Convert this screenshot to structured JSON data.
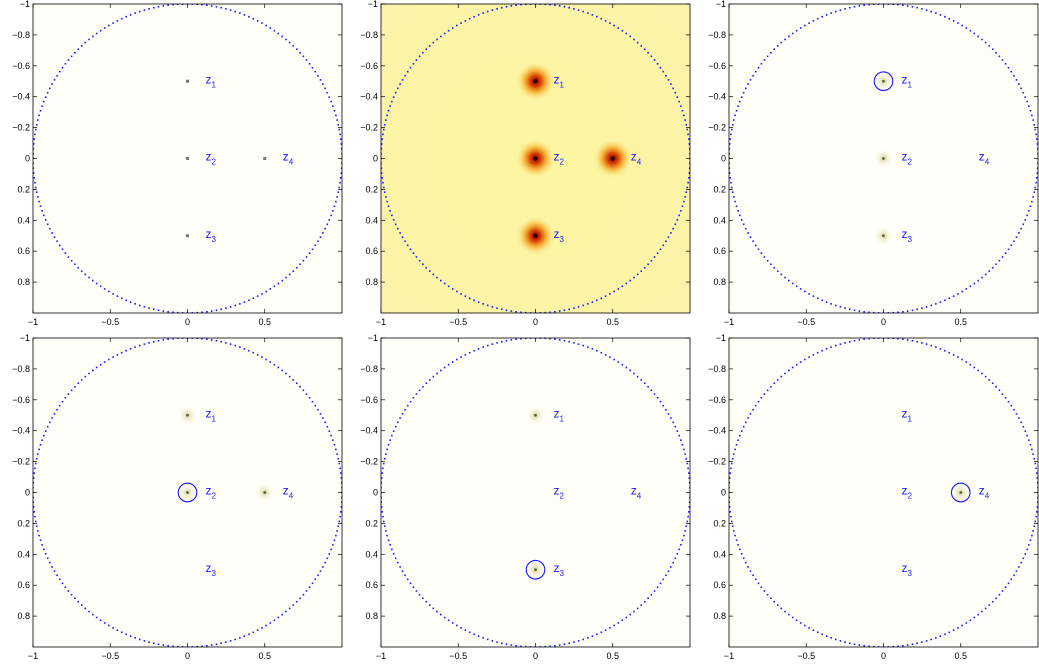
{
  "chart_data": [
    {
      "type": "scatter",
      "xlim": [
        -1,
        1
      ],
      "ylim": [
        -1,
        1
      ],
      "y_axis": "reversed",
      "xticks": [
        -1,
        -0.5,
        0,
        0.5
      ],
      "xtick_labels": [
        "−1",
        "−0.5",
        "0",
        "0.5"
      ],
      "yticks": [
        -1,
        -0.8,
        -0.6,
        -0.4,
        -0.2,
        0,
        0.2,
        0.4,
        0.6,
        0.8
      ],
      "ytick_labels": [
        "−1",
        "−0.8",
        "−0.6",
        "−0.4",
        "−0.2",
        "0",
        "0.2",
        "0.4",
        "0.6",
        "0.8"
      ],
      "grid": false,
      "background": "white",
      "unit_circle": true,
      "points": [
        {
          "label": "z",
          "sub": "1",
          "x": 0,
          "y": -0.5,
          "marker": "gray-dot"
        },
        {
          "label": "z",
          "sub": "2",
          "x": 0,
          "y": 0,
          "marker": "gray-dot"
        },
        {
          "label": "z",
          "sub": "3",
          "x": 0,
          "y": 0.5,
          "marker": "gray-dot"
        },
        {
          "label": "z",
          "sub": "4",
          "x": 0.5,
          "y": 0,
          "marker": "gray-dot"
        }
      ],
      "highlight": null
    },
    {
      "type": "heatmap",
      "xlim": [
        -1,
        1
      ],
      "ylim": [
        -1,
        1
      ],
      "y_axis": "reversed",
      "xticks": [
        -1,
        -0.5,
        0,
        0.5
      ],
      "xtick_labels": [
        "−1",
        "−0.5",
        "0",
        "0.5"
      ],
      "yticks": [
        -1,
        -0.8,
        -0.6,
        -0.4,
        -0.2,
        0,
        0.2,
        0.4,
        0.6,
        0.8
      ],
      "ytick_labels": [
        "−1",
        "−0.8",
        "−0.6",
        "−0.4",
        "−0.2",
        "0",
        "0.2",
        "0.4",
        "0.6",
        "0.8"
      ],
      "grid": false,
      "background": "yellow",
      "unit_circle": true,
      "points": [
        {
          "label": "z",
          "sub": "1",
          "x": 0,
          "y": -0.5,
          "marker": "hot-spot"
        },
        {
          "label": "z",
          "sub": "2",
          "x": 0,
          "y": 0,
          "marker": "hot-spot"
        },
        {
          "label": "z",
          "sub": "3",
          "x": 0,
          "y": 0.5,
          "marker": "hot-spot"
        },
        {
          "label": "z",
          "sub": "4",
          "x": 0.5,
          "y": 0,
          "marker": "hot-spot"
        }
      ],
      "highlight": null
    },
    {
      "type": "heatmap",
      "xlim": [
        -1,
        1
      ],
      "ylim": [
        -1,
        1
      ],
      "y_axis": "reversed",
      "xticks": [
        -1,
        -0.5,
        0,
        0.5
      ],
      "xtick_labels": [
        "−1",
        "−0.5",
        "0",
        "0.5"
      ],
      "yticks": [
        -1,
        -0.8,
        -0.6,
        -0.4,
        -0.2,
        0,
        0.2,
        0.4,
        0.6,
        0.8
      ],
      "ytick_labels": [
        "−1",
        "−0.8",
        "−0.6",
        "−0.4",
        "−0.2",
        "0",
        "0.2",
        "0.4",
        "0.6",
        "0.8"
      ],
      "grid": false,
      "background": "white",
      "unit_circle": true,
      "points": [
        {
          "label": "z",
          "sub": "1",
          "x": 0,
          "y": -0.5,
          "marker": "faint-spot"
        },
        {
          "label": "z",
          "sub": "2",
          "x": 0,
          "y": 0,
          "marker": "faint-spot"
        },
        {
          "label": "z",
          "sub": "3",
          "x": 0,
          "y": 0.5,
          "marker": "faint-spot"
        },
        {
          "label": "z",
          "sub": "4",
          "x": 0.5,
          "y": 0,
          "marker": "none"
        }
      ],
      "highlight": {
        "x": 0,
        "y": -0.5,
        "radius": 0.06
      }
    },
    {
      "type": "heatmap",
      "xlim": [
        -1,
        1
      ],
      "ylim": [
        -1,
        1
      ],
      "y_axis": "reversed",
      "xticks": [
        -1,
        -0.5,
        0,
        0.5
      ],
      "xtick_labels": [
        "−1",
        "−0.5",
        "0",
        "0.5"
      ],
      "yticks": [
        -1,
        -0.8,
        -0.6,
        -0.4,
        -0.2,
        0,
        0.2,
        0.4,
        0.6,
        0.8
      ],
      "ytick_labels": [
        "−1",
        "−0.8",
        "−0.6",
        "−0.4",
        "−0.2",
        "0",
        "0.2",
        "0.4",
        "0.6",
        "0.8"
      ],
      "grid": false,
      "background": "white",
      "unit_circle": true,
      "points": [
        {
          "label": "z",
          "sub": "1",
          "x": 0,
          "y": -0.5,
          "marker": "faint-spot"
        },
        {
          "label": "z",
          "sub": "2",
          "x": 0,
          "y": 0,
          "marker": "faint-spot"
        },
        {
          "label": "z",
          "sub": "3",
          "x": 0,
          "y": 0.5,
          "marker": "none"
        },
        {
          "label": "z",
          "sub": "4",
          "x": 0.5,
          "y": 0,
          "marker": "faint-spot"
        }
      ],
      "highlight": {
        "x": 0,
        "y": 0,
        "radius": 0.06
      }
    },
    {
      "type": "heatmap",
      "xlim": [
        -1,
        1
      ],
      "ylim": [
        -1,
        1
      ],
      "y_axis": "reversed",
      "xticks": [
        -1,
        -0.5,
        0,
        0.5
      ],
      "xtick_labels": [
        "−1",
        "−0.5",
        "0",
        "0.5"
      ],
      "yticks": [
        -1,
        -0.8,
        -0.6,
        -0.4,
        -0.2,
        0,
        0.2,
        0.4,
        0.6,
        0.8
      ],
      "ytick_labels": [
        "−1",
        "−0.8",
        "−0.6",
        "−0.4",
        "−0.2",
        "0",
        "0.2",
        "0.4",
        "0.6",
        "0.8"
      ],
      "grid": false,
      "background": "white",
      "unit_circle": true,
      "points": [
        {
          "label": "z",
          "sub": "1",
          "x": 0,
          "y": -0.5,
          "marker": "faint-spot"
        },
        {
          "label": "z",
          "sub": "2",
          "x": 0,
          "y": 0,
          "marker": "none"
        },
        {
          "label": "z",
          "sub": "3",
          "x": 0,
          "y": 0.5,
          "marker": "faint-spot"
        },
        {
          "label": "z",
          "sub": "4",
          "x": 0.5,
          "y": 0,
          "marker": "none"
        }
      ],
      "highlight": {
        "x": 0,
        "y": 0.5,
        "radius": 0.06
      }
    },
    {
      "type": "heatmap",
      "xlim": [
        -1,
        1
      ],
      "ylim": [
        -1,
        1
      ],
      "y_axis": "reversed",
      "xticks": [
        -1,
        -0.5,
        0,
        0.5
      ],
      "xtick_labels": [
        "−1",
        "−0.5",
        "0",
        "0.5"
      ],
      "yticks": [
        -1,
        -0.8,
        -0.6,
        -0.4,
        -0.2,
        0,
        0.2,
        0.4,
        0.6,
        0.8
      ],
      "ytick_labels": [
        "−1",
        "−0.8",
        "−0.6",
        "−0.4",
        "−0.2",
        "0",
        "0.2",
        "0.4",
        "0.6",
        "0.8"
      ],
      "grid": false,
      "background": "white",
      "unit_circle": true,
      "points": [
        {
          "label": "z",
          "sub": "1",
          "x": 0,
          "y": -0.5,
          "marker": "none"
        },
        {
          "label": "z",
          "sub": "2",
          "x": 0,
          "y": 0,
          "marker": "none"
        },
        {
          "label": "z",
          "sub": "3",
          "x": 0,
          "y": 0.5,
          "marker": "none"
        },
        {
          "label": "z",
          "sub": "4",
          "x": 0.5,
          "y": 0,
          "marker": "faint-spot"
        }
      ],
      "highlight": {
        "x": 0.5,
        "y": 0,
        "radius": 0.06
      }
    }
  ],
  "colors": {
    "circle": "#1a1aff",
    "label": "#1a1aff",
    "yellow_bg": "#fbf7a6",
    "white_bg": "#fffff9",
    "point_gray": "#777777"
  }
}
